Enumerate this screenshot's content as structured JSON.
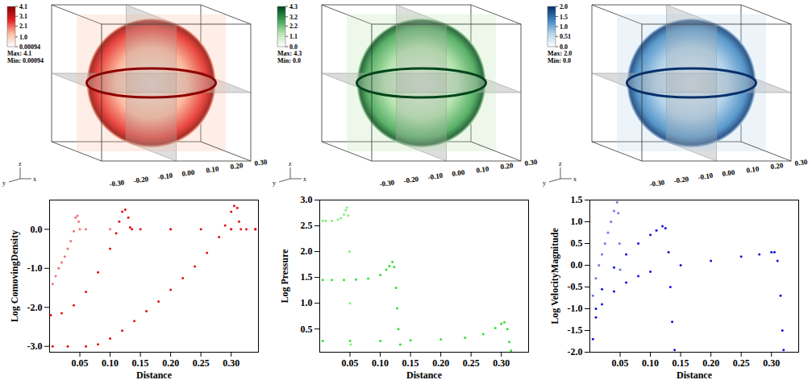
{
  "chart_data": [
    {
      "type": "scatter",
      "marker": "dot",
      "x_label": "Distance",
      "y_label": "Log ComovingDensity",
      "xlim": [
        0,
        0.345
      ],
      "ylim": [
        -3.15,
        0.75
      ],
      "xticks": [
        0.05,
        {
          "value": 0.1,
          "label": "0.10"
        },
        0.15,
        {
          "value": 0.2,
          "label": "0.20"
        },
        0.25,
        {
          "value": 0.3,
          "label": "0.30"
        }
      ],
      "yticks": [
        {
          "value": -3,
          "label": "-3.0"
        },
        {
          "value": -2,
          "label": "-2.0"
        },
        {
          "value": -1,
          "label": "-1.0"
        },
        {
          "value": 0,
          "label": "0.0"
        }
      ],
      "series": [
        {
          "color": "#f07070",
          "x": [
            0.005,
            0.01,
            0.015,
            0.02,
            0.025,
            0.03,
            0.035,
            0.04,
            0.043,
            0.046,
            0.048,
            0.05,
            0.06,
            0.1,
            0.2,
            0.3,
            0.34
          ],
          "values": [
            -1.4,
            -1.2,
            -1.0,
            -0.85,
            -0.7,
            -0.5,
            -0.3,
            -0.05,
            0.3,
            0.35,
            0.2,
            0.0,
            0.0,
            0.0,
            0.0,
            0.0,
            0.0
          ]
        },
        {
          "color": "#e01010",
          "x": [
            0.002,
            0.02,
            0.04,
            0.06,
            0.08,
            0.1,
            0.11,
            0.115,
            0.12,
            0.125,
            0.13,
            0.133,
            0.136,
            0.15,
            0.2,
            0.25,
            0.3,
            0.34
          ],
          "values": [
            -2.2,
            -2.15,
            -1.95,
            -1.6,
            -1.1,
            -0.5,
            -0.1,
            0.2,
            0.45,
            0.5,
            0.3,
            0.05,
            0.0,
            0.0,
            0.0,
            0.0,
            0.0,
            0.0
          ]
        },
        {
          "color": "#e01010",
          "x": [
            0.005,
            0.03,
            0.06,
            0.08,
            0.1,
            0.12,
            0.14,
            0.16,
            0.18,
            0.2,
            0.22,
            0.24,
            0.26,
            0.28,
            0.29,
            0.3,
            0.305,
            0.31,
            0.313,
            0.316,
            0.325,
            0.34
          ],
          "values": [
            -3.0,
            -3.0,
            -3.0,
            -2.95,
            -2.8,
            -2.6,
            -2.35,
            -2.1,
            -1.85,
            -1.55,
            -1.25,
            -0.95,
            -0.6,
            -0.2,
            0.1,
            0.45,
            0.6,
            0.55,
            0.2,
            0.0,
            0.0,
            0.0
          ]
        }
      ]
    },
    {
      "type": "scatter",
      "marker": "dot",
      "x_label": "Distance",
      "y_label": "Log Pressure",
      "xlim": [
        0,
        0.345
      ],
      "ylim": [
        0.05,
        3.0
      ],
      "xticks": [
        0.05,
        {
          "value": 0.1,
          "label": "0.10"
        },
        0.15,
        {
          "value": 0.2,
          "label": "0.20"
        },
        0.25,
        {
          "value": 0.3,
          "label": "0.30"
        }
      ],
      "yticks": [
        0.5,
        {
          "value": 1,
          "label": "1.0"
        },
        1.5,
        {
          "value": 2,
          "label": "2.0"
        },
        2.5,
        {
          "value": 3,
          "label": "3.0"
        }
      ],
      "series": [
        {
          "color": "#7ef07e",
          "x": [
            0.005,
            0.01,
            0.02,
            0.03,
            0.035,
            0.04,
            0.043,
            0.045,
            0.047,
            0.049,
            0.05,
            0.051
          ],
          "values": [
            2.6,
            2.6,
            2.6,
            2.62,
            2.65,
            2.72,
            2.8,
            2.85,
            2.7,
            2.0,
            1.0,
            0.2
          ]
        },
        {
          "color": "#33dd33",
          "x": [
            0.005,
            0.02,
            0.04,
            0.06,
            0.08,
            0.1,
            0.11,
            0.115,
            0.12,
            0.123,
            0.126,
            0.128,
            0.13,
            0.133
          ],
          "values": [
            1.45,
            1.45,
            1.45,
            1.46,
            1.48,
            1.55,
            1.65,
            1.72,
            1.8,
            1.7,
            1.3,
            0.9,
            0.5,
            0.2
          ]
        },
        {
          "color": "#33dd33",
          "x": [
            0.005,
            0.05,
            0.1,
            0.15,
            0.2,
            0.24,
            0.27,
            0.29,
            0.3,
            0.305,
            0.31,
            0.313,
            0.316
          ],
          "values": [
            0.27,
            0.27,
            0.27,
            0.28,
            0.3,
            0.33,
            0.4,
            0.52,
            0.6,
            0.63,
            0.5,
            0.25,
            0.08
          ]
        }
      ]
    },
    {
      "type": "scatter",
      "marker": "dot",
      "x_label": "Distance",
      "y_label": "Log VelocityMagnitude",
      "xlim": [
        0,
        0.345
      ],
      "ylim": [
        -2.0,
        1.5
      ],
      "xticks": [
        0.05,
        {
          "value": 0.1,
          "label": "0.10"
        },
        0.15,
        {
          "value": 0.2,
          "label": "0.20"
        },
        0.25,
        {
          "value": 0.3,
          "label": "0.30"
        }
      ],
      "yticks": [
        {
          "value": -2,
          "label": "-2.0"
        },
        -1.5,
        {
          "value": -1,
          "label": "-1.0"
        },
        -0.5,
        {
          "value": 0,
          "label": "0.0"
        },
        0.5,
        {
          "value": 1,
          "label": "1.0"
        },
        1.5
      ],
      "series": [
        {
          "color": "#7070f0",
          "x": [
            0.005,
            0.01,
            0.015,
            0.02,
            0.025,
            0.03,
            0.035,
            0.04,
            0.045,
            0.047,
            0.049,
            0.05
          ],
          "values": [
            -0.7,
            -0.3,
            0.0,
            0.25,
            0.5,
            0.75,
            1.0,
            1.25,
            1.45,
            1.2,
            0.5,
            -0.1
          ]
        },
        {
          "color": "#1010e0",
          "x": [
            0.01,
            0.02,
            0.04,
            0.06,
            0.08,
            0.1,
            0.11,
            0.12,
            0.125,
            0.13,
            0.133,
            0.136,
            0.14
          ],
          "values": [
            -1.0,
            -0.55,
            -0.05,
            0.25,
            0.5,
            0.7,
            0.8,
            0.9,
            0.85,
            0.3,
            -0.5,
            -1.3,
            -1.95
          ]
        },
        {
          "color": "#1010e0",
          "x": [
            0.005,
            0.01,
            0.02,
            0.04,
            0.06,
            0.08,
            0.1,
            0.15,
            0.2,
            0.25,
            0.28,
            0.3,
            0.305,
            0.31,
            0.315,
            0.318,
            0.32
          ],
          "values": [
            -1.7,
            -1.2,
            -0.9,
            -0.6,
            -0.4,
            -0.25,
            -0.15,
            0.0,
            0.1,
            0.2,
            0.25,
            0.3,
            0.3,
            0.1,
            -0.7,
            -1.5,
            -1.95
          ]
        }
      ]
    }
  ],
  "renders": [
    {
      "colorbar": {
        "colors": [
          "#ffffff",
          "#fcbba1",
          "#e32020",
          "#8b0000"
        ],
        "range": [
          0.00094,
          4.1
        ],
        "ticks": [
          4.1,
          3.1,
          2.1,
          {
            "value": 1.0,
            "label": "1.0"
          },
          0.00094
        ]
      },
      "max_text": "Max: 4.1",
      "min_text": "Min: 0.00094",
      "axis_names": [
        "y",
        "z",
        "x"
      ],
      "axis_ticks": [
        {
          "value": -0.3,
          "label": "-0.30"
        },
        {
          "value": -0.2,
          "label": "-0.20"
        },
        {
          "value": -0.1,
          "label": "-0.10"
        },
        {
          "value": 0,
          "label": "0.00"
        },
        {
          "value": 0.1,
          "label": "0.10"
        },
        {
          "value": 0.2,
          "label": "0.20"
        },
        {
          "value": 0.3,
          "label": "0.30"
        }
      ]
    },
    {
      "colorbar": {
        "colors": [
          "#ffffff",
          "#b7e4b0",
          "#3aa050",
          "#00441b"
        ],
        "range": [
          0,
          4.3
        ],
        "ticks": [
          4.3,
          3.2,
          2.2,
          1.1,
          {
            "value": 0,
            "label": "0.0"
          }
        ]
      },
      "max_text": "Max: 4.3",
      "min_text": "Min: 0.0",
      "axis_names": [
        "y",
        "z",
        "x"
      ],
      "axis_ticks": [
        {
          "value": -0.3,
          "label": "-0.30"
        },
        {
          "value": -0.2,
          "label": "-0.20"
        },
        {
          "value": -0.1,
          "label": "-0.10"
        },
        {
          "value": 0,
          "label": "0.00"
        },
        {
          "value": 0.1,
          "label": "0.10"
        },
        {
          "value": 0.2,
          "label": "0.20"
        },
        {
          "value": 0.3,
          "label": "0.30"
        }
      ]
    },
    {
      "colorbar": {
        "colors": [
          "#ffffff",
          "#b3d3ea",
          "#3a84c0",
          "#08306b"
        ],
        "range": [
          0,
          2.0
        ],
        "ticks": [
          {
            "value": 2.0,
            "label": "2.0"
          },
          1.5,
          {
            "value": 1.0,
            "label": "1.0"
          },
          0.51,
          {
            "value": 0,
            "label": "0.0"
          }
        ]
      },
      "max_text": "Max: 2.0",
      "min_text": "Min: 0.0",
      "axis_names": [
        "y",
        "z",
        "x"
      ],
      "axis_ticks": [
        {
          "value": -0.3,
          "label": "-0.30"
        },
        {
          "value": -0.2,
          "label": "-0.20"
        },
        {
          "value": -0.1,
          "label": "-0.10"
        },
        {
          "value": 0,
          "label": "0.00"
        },
        {
          "value": 0.1,
          "label": "0.10"
        },
        {
          "value": 0.2,
          "label": "0.20"
        },
        {
          "value": 0.3,
          "label": "0.30"
        }
      ]
    }
  ]
}
